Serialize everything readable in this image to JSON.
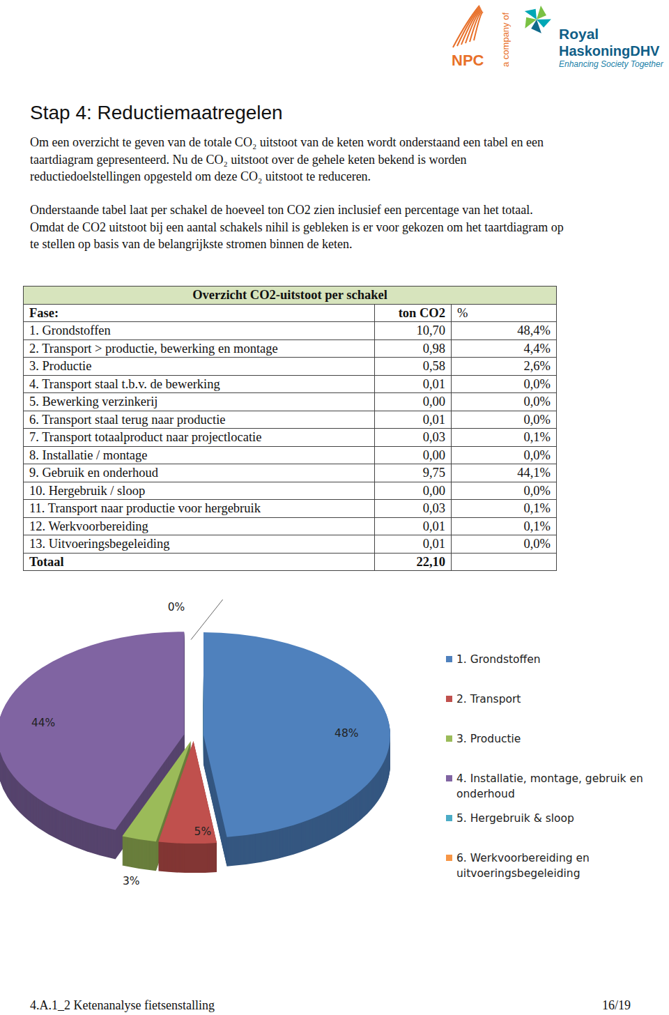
{
  "header": {
    "logo_left": "NPC",
    "logo_mid": "a company of",
    "logo_right": [
      "Royal",
      "HaskoningDHV"
    ],
    "tagline": "Enhancing Society Together"
  },
  "title": "Stap 4: Reductiemaatregelen",
  "paragraphs": [
    "Om een overzicht te geven van de totale CO₂ uitstoot van de keten wordt onderstaand een tabel en een taartdiagram gepresenteerd. Nu de CO₂ uitstoot over de gehele keten bekend is worden reductiedoelstellingen opgesteld om deze CO₂ uitstoot te reduceren.",
    "Onderstaande tabel laat per schakel de hoeveel ton CO2 zien inclusief een percentage van het totaal. Omdat de CO2 uitstoot bij een aantal schakels nihil is gebleken is er voor gekozen om het taartdiagram op te stellen op basis van de belangrijkste stromen binnen de keten."
  ],
  "table": {
    "title": "Overzicht CO2-uitstoot per schakel",
    "columns": [
      "Fase:",
      "ton CO2",
      "%"
    ],
    "rows": [
      [
        "1. Grondstoffen",
        "10,70",
        "48,4%"
      ],
      [
        "2. Transport > productie, bewerking en montage",
        "0,98",
        "4,4%"
      ],
      [
        "3. Productie",
        "0,58",
        "2,6%"
      ],
      [
        "4. Transport staal t.b.v. de bewerking",
        "0,01",
        "0,0%"
      ],
      [
        "5. Bewerking verzinkerij",
        "0,00",
        "0,0%"
      ],
      [
        "6. Transport staal terug naar productie",
        "0,01",
        "0,0%"
      ],
      [
        "7. Transport totaalproduct naar projectlocatie",
        "0,03",
        "0,1%"
      ],
      [
        "8. Installatie / montage",
        "0,00",
        "0,0%"
      ],
      [
        "9. Gebruik en onderhoud",
        "9,75",
        "44,1%"
      ],
      [
        "10. Hergebruik / sloop",
        "0,00",
        "0,0%"
      ],
      [
        "11. Transport naar productie voor hergebruik",
        "0,03",
        "0,1%"
      ],
      [
        "12. Werkvoorbereiding",
        "0,01",
        "0,1%"
      ],
      [
        "13. Uitvoeringsbegeleiding",
        "0,01",
        "0,0%"
      ]
    ],
    "total": [
      "Totaal",
      "22,10"
    ]
  },
  "chart_data": {
    "type": "pie",
    "categories": [
      "1. Grondstoffen",
      "2. Transport",
      "3. Productie",
      "4. Installatie, montage, gebruik en onderhoud",
      "5. Hergebruik & sloop",
      "6. Werkvoorbereiding en uitvoeringsbegeleiding"
    ],
    "values": [
      48,
      5,
      3,
      44,
      0,
      0
    ],
    "value_labels": [
      "48%",
      "5%",
      "3%",
      "44%",
      "0%",
      "0%"
    ],
    "colors": [
      "#4f81bd",
      "#c0504d",
      "#9bbb59",
      "#8064a2",
      "#4bacc6",
      "#f79646"
    ],
    "data_labels": true,
    "legend": "right"
  },
  "footer": {
    "left": "4.A.1_2 Ketenanalyse fietsenstalling",
    "right": "16/19"
  }
}
